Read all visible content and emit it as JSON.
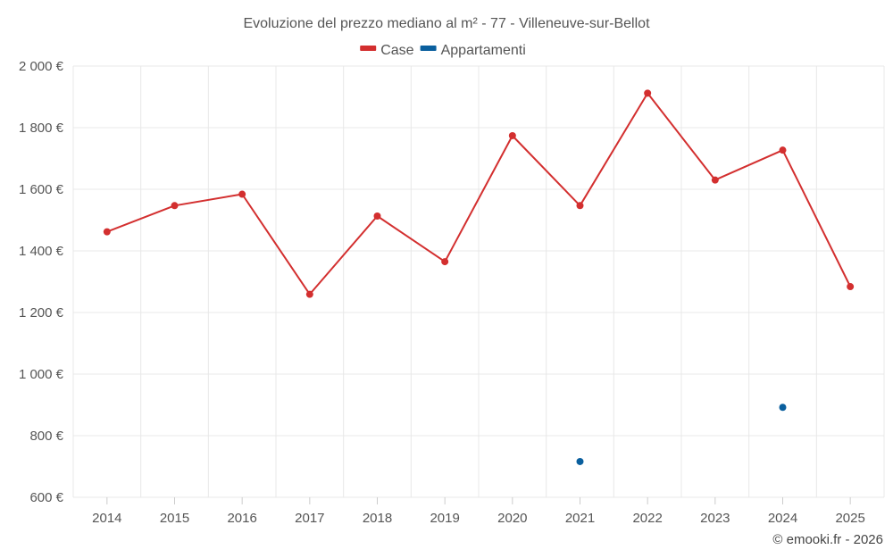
{
  "chart_data": {
    "type": "line",
    "title": "Evoluzione del prezzo mediano al m² - 77 - Villeneuve-sur-Bellot",
    "categories": [
      "2014",
      "2015",
      "2016",
      "2017",
      "2018",
      "2019",
      "2020",
      "2021",
      "2022",
      "2023",
      "2024",
      "2025"
    ],
    "ylim": [
      600,
      2000
    ],
    "yticks": [
      600,
      800,
      1000,
      1200,
      1400,
      1600,
      1800,
      2000
    ],
    "ytick_labels": [
      "600 €",
      "800 €",
      "1 000 €",
      "1 200 €",
      "1 400 €",
      "1 600 €",
      "1 800 €",
      "2 000 €"
    ],
    "grid": true,
    "legend_position": "top-center",
    "series": [
      {
        "name": "Case",
        "color": "#d32f2f",
        "values": [
          1462,
          1547,
          1584,
          1259,
          1513,
          1365,
          1774,
          1547,
          1912,
          1630,
          1727,
          1284
        ]
      },
      {
        "name": "Appartamenti",
        "color": "#0a5f9e",
        "values": [
          null,
          null,
          null,
          null,
          null,
          null,
          null,
          716,
          null,
          null,
          892,
          null
        ]
      }
    ]
  },
  "credit": "© emooki.fr - 2026"
}
